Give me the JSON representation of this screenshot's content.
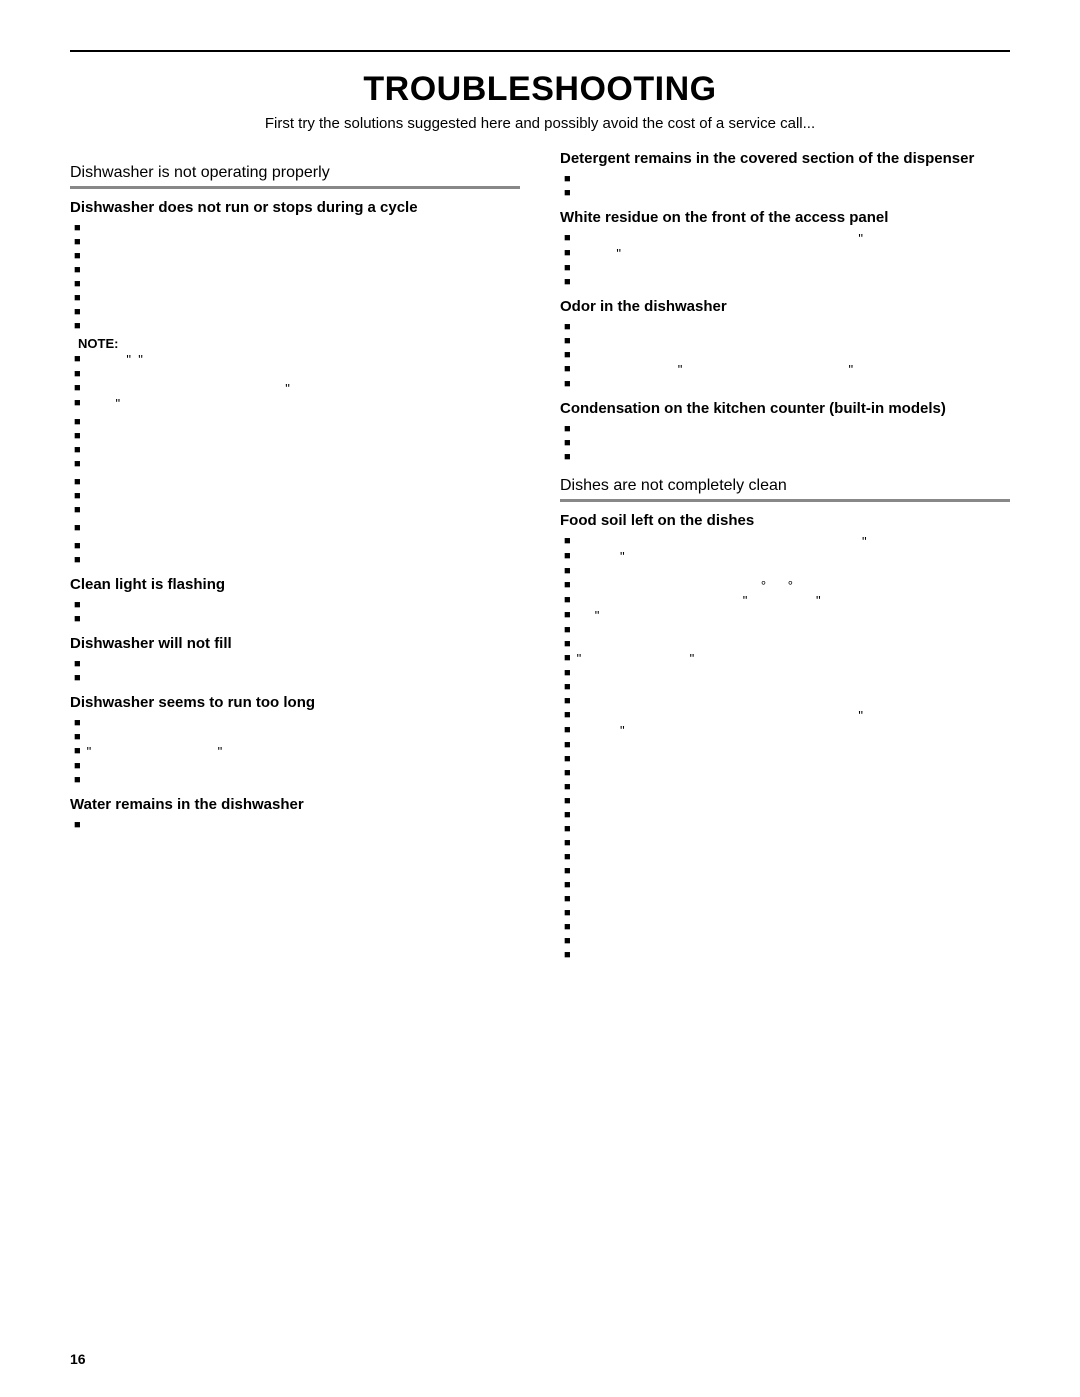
{
  "page": {
    "title": "TROUBLESHOOTING",
    "intro": "First try the solutions suggested here and possibly avoid the cost of a service call...",
    "page_number": "16",
    "note_label": "NOTE:",
    "colors": {
      "rule": "#888888",
      "text": "#000000",
      "bg": "#ffffff"
    },
    "font_sizes": {
      "title": 34,
      "section": 16,
      "symptom": 15,
      "body": 13
    }
  },
  "left": {
    "section1": {
      "header": "Dishwasher is not operating properly",
      "symptom1": "Dishwasher does not run or stops during a cycle",
      "s1_bullets_a": [
        "",
        "",
        "",
        "",
        "",
        "",
        "",
        ""
      ],
      "s1_note_bullets": [
        "           \"  \"",
        "",
        "                                                       \"",
        "        \""
      ],
      "s1_bullets_b": [
        "",
        "",
        "",
        ""
      ],
      "s1_bullets_c": [
        "",
        "",
        ""
      ],
      "s1_bullets_d": [
        ""
      ],
      "s1_bullets_e": [
        "",
        ""
      ],
      "symptom2": "Clean light is flashing",
      "s2_bullets": [
        "",
        ""
      ],
      "symptom3": "Dishwasher will not fill",
      "s3_bullets": [
        "",
        ""
      ],
      "symptom4": "Dishwasher seems to run too long",
      "s4_bullets": [
        "",
        "",
        "\"                                   \"",
        "",
        ""
      ],
      "symptom5": "Water remains in the dishwasher",
      "s5_bullets": [
        ""
      ]
    }
  },
  "right": {
    "cont": {
      "symptom1": "Detergent remains in the covered section of the dispenser",
      "s1_bullets": [
        "",
        ""
      ],
      "symptom2": "White residue on the front of the access panel",
      "s2_bullets": [
        "                                                                              \"",
        "           \"",
        "",
        ""
      ],
      "symptom3": "Odor in the dishwasher",
      "s3_bullets": [
        "",
        "",
        "",
        "                            \"                                              \"",
        ""
      ],
      "symptom4": "Condensation on the kitchen counter (built-in models)",
      "s4_bullets": [
        "",
        "",
        ""
      ]
    },
    "section2": {
      "header": "Dishes are not completely clean",
      "symptom1": "Food soil left on the dishes",
      "s1_bullets": [
        "                                                                               \"",
        "            \"",
        "",
        "                                                   °      °",
        "                                              \"                   \"",
        "     \"",
        "",
        "",
        "\"                              \"",
        "",
        "",
        "",
        "                                                                              \"",
        "            \"",
        "",
        "",
        "",
        "",
        "",
        "",
        "",
        "",
        "",
        "",
        "",
        "",
        "",
        "",
        "",
        ""
      ]
    }
  }
}
